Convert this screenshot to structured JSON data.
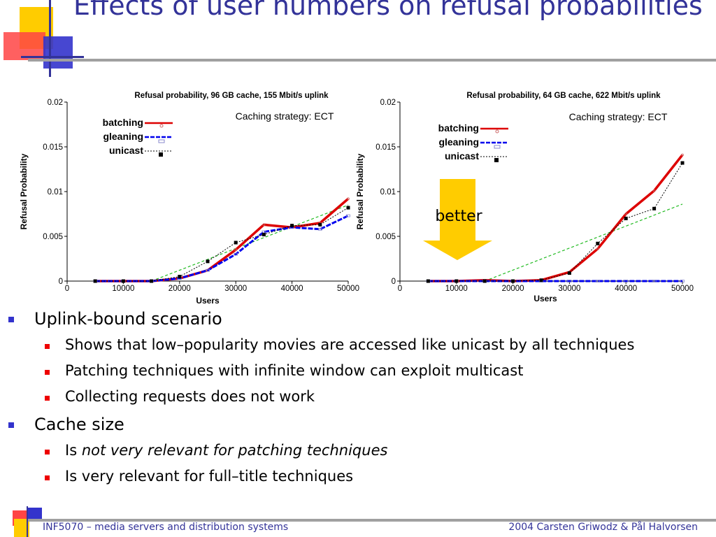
{
  "slide": {
    "title": "Effects of user numbers on refusal probabilities"
  },
  "callout": {
    "label": "better"
  },
  "bullets": [
    {
      "text": "Uplink-bound scenario",
      "sub": [
        {
          "text": "Shows that low–popularity movies are accessed like unicast by all techniques"
        },
        {
          "text": "Patching techniques with infinite window can exploit multicast"
        },
        {
          "text": "Collecting requests does not work"
        }
      ]
    },
    {
      "text": "Cache size",
      "sub": [
        {
          "prefix": "Is ",
          "emph": "not very relevant for patching techniques"
        },
        {
          "text": "Is very relevant for full–title techniques"
        }
      ]
    }
  ],
  "footer": {
    "left": "INF5070 – media servers and distribution systems",
    "right": "2004  Carsten Griwodz & Pål Halvorsen"
  },
  "colors": {
    "title": "#333399",
    "batching": "#dd0000",
    "gleaning": "#0000ee",
    "unicast": "#000000",
    "trend": "#22bb22",
    "arrow": "#ffcc00"
  },
  "chart_data": [
    {
      "type": "line",
      "title": "Refusal probability, 96 GB cache, 155 Mbit/s uplink",
      "annotation": "Caching strategy: ECT",
      "xlabel": "Users",
      "ylabel": "Refusal Probability",
      "xlim": [
        0,
        50000
      ],
      "ylim": [
        0,
        0.02
      ],
      "xticks": [
        "0",
        "10000",
        "20000",
        "30000",
        "40000",
        "50000"
      ],
      "yticks": [
        "0",
        "0.005",
        "0.01",
        "0.015",
        "0.02"
      ],
      "x": [
        5000,
        10000,
        15000,
        20000,
        25000,
        30000,
        35000,
        40000,
        45000,
        50000
      ],
      "series": [
        {
          "name": "batching",
          "values": [
            0,
            0,
            0,
            0.0003,
            0.0012,
            0.0035,
            0.0063,
            0.006,
            0.0065,
            0.0092
          ]
        },
        {
          "name": "gleaning",
          "values": [
            0,
            0,
            0,
            0.0003,
            0.0012,
            0.003,
            0.0055,
            0.006,
            0.0058,
            0.0073
          ]
        },
        {
          "name": "unicast",
          "values": [
            0,
            0,
            0,
            0.0005,
            0.0022,
            0.0043,
            0.0052,
            0.0062,
            0.0063,
            0.0082
          ]
        }
      ],
      "trend": {
        "x": [
          15000,
          50000
        ],
        "values": [
          0,
          0.0085
        ]
      },
      "grid": false,
      "legend": "top-left"
    },
    {
      "type": "line",
      "title": "Refusal probability, 64 GB cache, 622 Mbit/s uplink",
      "annotation": "Caching strategy: ECT",
      "xlabel": "Users",
      "ylabel": "Refusal Probability",
      "xlim": [
        0,
        50000
      ],
      "ylim": [
        0,
        0.02
      ],
      "xticks": [
        "0",
        "10000",
        "20000",
        "30000",
        "40000",
        "50000"
      ],
      "yticks": [
        "0",
        "0.005",
        "0.01",
        "0.015",
        "0.02"
      ],
      "x": [
        5000,
        10000,
        15000,
        20000,
        25000,
        30000,
        35000,
        40000,
        45000,
        50000
      ],
      "series": [
        {
          "name": "batching",
          "values": [
            0,
            0,
            0.0001,
            0,
            0.0001,
            0.001,
            0.0036,
            0.0075,
            0.0101,
            0.0141
          ]
        },
        {
          "name": "gleaning",
          "values": [
            0,
            0,
            0,
            0,
            0,
            0,
            0,
            0,
            0,
            0
          ]
        },
        {
          "name": "unicast",
          "values": [
            0,
            0,
            0,
            0,
            0.0001,
            0.0009,
            0.0042,
            0.007,
            0.0081,
            0.0132
          ]
        }
      ],
      "trend": {
        "x": [
          15000,
          50000
        ],
        "values": [
          0,
          0.0086
        ]
      },
      "grid": false,
      "legend": "top-left"
    }
  ]
}
